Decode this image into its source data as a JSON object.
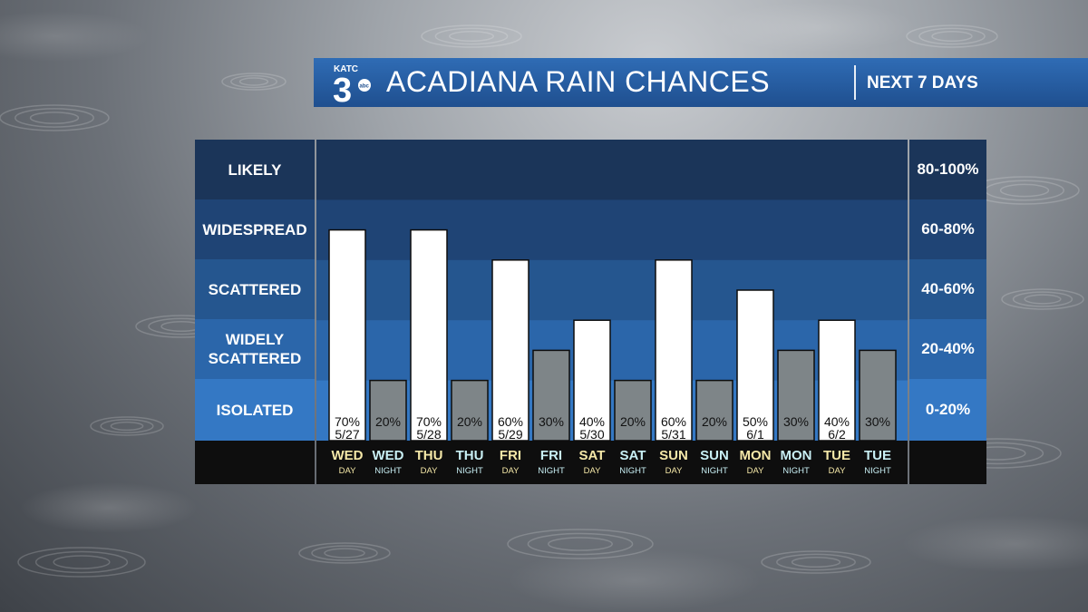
{
  "banner": {
    "logo_call": "KATC",
    "logo_num": "3",
    "logo_net": "abc",
    "title": "ACADIANA RAIN CHANCES",
    "subtitle": "NEXT 7 DAYS"
  },
  "categories": [
    {
      "label": "LIKELY",
      "range": "80-100%"
    },
    {
      "label": "WIDESPREAD",
      "range": "60-80%"
    },
    {
      "label": "SCATTERED",
      "range": "40-60%"
    },
    {
      "label": "WIDELY\nSCATTERED",
      "range": "20-40%"
    },
    {
      "label": "ISOLATED",
      "range": "0-20%"
    }
  ],
  "colors": {
    "day_bar": "#ffffff",
    "night_bar": "#7e8588",
    "day_label": "#f5e8a8",
    "night_label": "#c9f0f5",
    "footer": "#0e0e0e"
  },
  "chart_data": {
    "type": "bar",
    "ylim": [
      0,
      100
    ],
    "categories": [
      {
        "day": "WED",
        "period": "DAY",
        "date": "5/27",
        "value": 70
      },
      {
        "day": "WED",
        "period": "NIGHT",
        "date": "",
        "value": 20
      },
      {
        "day": "THU",
        "period": "DAY",
        "date": "5/28",
        "value": 70
      },
      {
        "day": "THU",
        "period": "NIGHT",
        "date": "",
        "value": 20
      },
      {
        "day": "FRI",
        "period": "DAY",
        "date": "5/29",
        "value": 60
      },
      {
        "day": "FRI",
        "period": "NIGHT",
        "date": "",
        "value": 30
      },
      {
        "day": "SAT",
        "period": "DAY",
        "date": "5/30",
        "value": 40
      },
      {
        "day": "SAT",
        "period": "NIGHT",
        "date": "",
        "value": 20
      },
      {
        "day": "SUN",
        "period": "DAY",
        "date": "5/31",
        "value": 60
      },
      {
        "day": "SUN",
        "period": "NIGHT",
        "date": "",
        "value": 20
      },
      {
        "day": "MON",
        "period": "DAY",
        "date": "6/1",
        "value": 50
      },
      {
        "day": "MON",
        "period": "NIGHT",
        "date": "",
        "value": 30
      },
      {
        "day": "TUE",
        "period": "DAY",
        "date": "6/2",
        "value": 40
      },
      {
        "day": "TUE",
        "period": "NIGHT",
        "date": "",
        "value": 30
      }
    ]
  }
}
